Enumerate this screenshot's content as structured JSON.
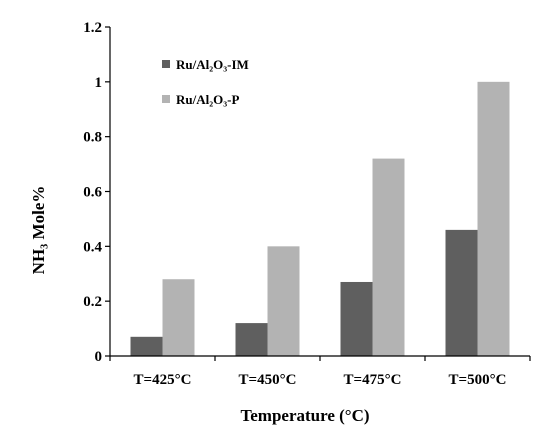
{
  "chart_data": {
    "type": "bar",
    "title": "",
    "xlabel": "Temperature (°C)",
    "ylabel": "NH₃ Mole%",
    "ylim": [
      0,
      1.2
    ],
    "yticks": [
      "0",
      "0.2",
      "0.4",
      "0.6",
      "0.8",
      "1",
      "1.2"
    ],
    "categories": [
      "T=425°C",
      "T=450°C",
      "T=475°C",
      "T=500°C"
    ],
    "series": [
      {
        "name": "Ru/Al₂O₃-IM",
        "values": [
          0.07,
          0.12,
          0.27,
          0.46
        ],
        "color": "#5f5f5f"
      },
      {
        "name": "Ru/Al₂O₃-P",
        "values": [
          0.28,
          0.4,
          0.72,
          1.0
        ],
        "color": "#b3b3b3"
      }
    ],
    "legend": "top-left",
    "grid": false
  }
}
